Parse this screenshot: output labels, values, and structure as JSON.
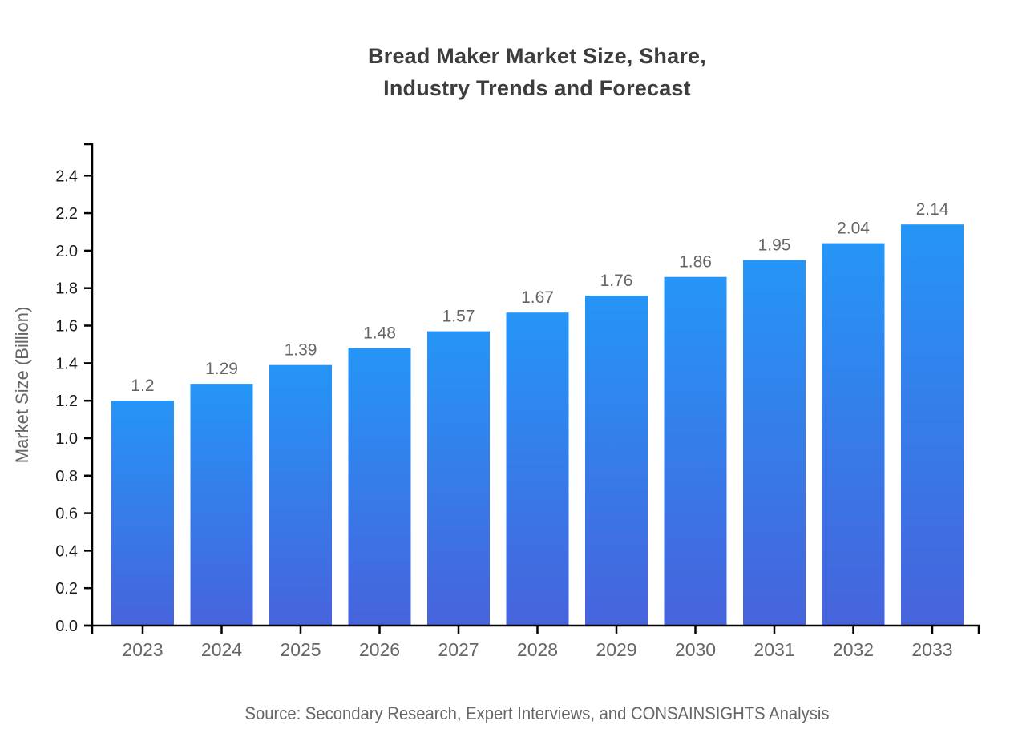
{
  "title": {
    "line1": "Bread Maker Market Size, Share,",
    "line2": "Industry Trends and Forecast"
  },
  "source": "Source: Secondary Research, Expert Interviews, and CONSAINSIGHTS Analysis",
  "chart_data": {
    "type": "bar",
    "title": "Bread Maker Market Size, Share, Industry Trends and Forecast",
    "categories": [
      "2023",
      "2024",
      "2025",
      "2026",
      "2027",
      "2028",
      "2029",
      "2030",
      "2031",
      "2032",
      "2033"
    ],
    "values": [
      1.2,
      1.29,
      1.39,
      1.48,
      1.57,
      1.67,
      1.76,
      1.86,
      1.95,
      2.04,
      2.14
    ],
    "bar_labels": [
      "1.2",
      "1.29",
      "1.39",
      "1.48",
      "1.57",
      "1.67",
      "1.76",
      "1.86",
      "1.95",
      "2.04",
      "2.14"
    ],
    "xlabel": "",
    "ylabel": "Market Size (Billion)",
    "ylim": [
      0,
      2.568
    ],
    "ytick_values": [
      0.0,
      0.2,
      0.4,
      0.6,
      0.8,
      1.0,
      1.2,
      1.4,
      1.6,
      1.8,
      2.0,
      2.2,
      2.4
    ],
    "ytick_labels": [
      "0.0",
      "0.2",
      "0.4",
      "0.6",
      "0.8",
      "1.0",
      "1.2",
      "1.4",
      "1.6",
      "1.8",
      "2.0",
      "2.2",
      "2.4"
    ],
    "grid": false,
    "legend": "none",
    "colors": {
      "bar_gradient_top": "#2595F6",
      "bar_gradient_bottom": "#4763DC",
      "axis": "#000000",
      "y_tick_label": "#1a1a1a",
      "x_tick_label": "#666666",
      "value_label": "#666666",
      "ylabel": "#666666",
      "title": "#3d3d3d",
      "source": "#666666"
    }
  }
}
